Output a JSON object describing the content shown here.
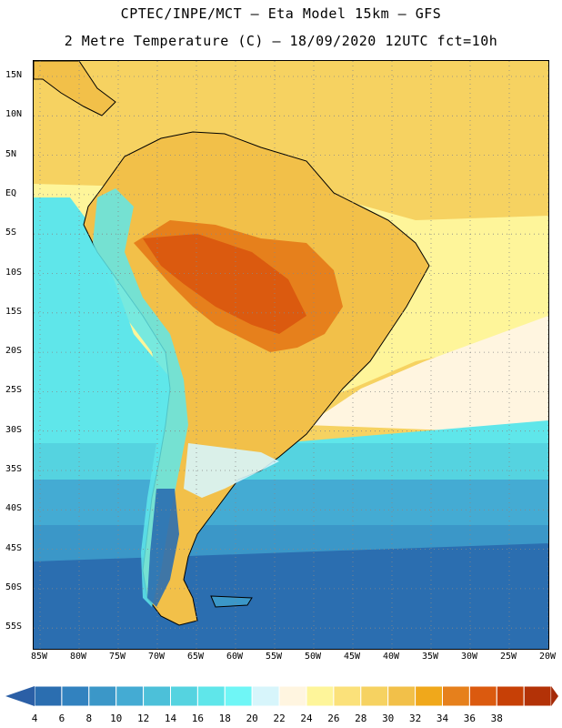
{
  "title": {
    "line1": "CPTEC/INPE/MCT –  Eta Model 15km – GFS",
    "line2": "2 Metre Temperature (C) – 18/09/2020 12UTC fct=10h"
  },
  "axes": {
    "lat_ticks": [
      "15N",
      "10N",
      "5N",
      "EQ",
      "5S",
      "10S",
      "15S",
      "20S",
      "25S",
      "30S",
      "35S",
      "40S",
      "45S",
      "50S",
      "55S"
    ],
    "lon_ticks": [
      "85W",
      "80W",
      "75W",
      "70W",
      "65W",
      "60W",
      "55W",
      "50W",
      "45W",
      "40W",
      "35W",
      "30W",
      "25W",
      "20W"
    ]
  },
  "colorbar": {
    "labels": [
      "4",
      "6",
      "8",
      "10",
      "12",
      "14",
      "16",
      "18",
      "20",
      "22",
      "24",
      "26",
      "28",
      "30",
      "32",
      "34",
      "36",
      "38"
    ],
    "colors": [
      "#2b6eb0",
      "#3282bf",
      "#3b97c8",
      "#44abd3",
      "#4cc0d9",
      "#55d3e0",
      "#5fe6ea",
      "#6ff6f6",
      "#d7f5fb",
      "#fff5e0",
      "#fef59a",
      "#fbe17a",
      "#f6d261",
      "#f2c049",
      "#f0a81b",
      "#e6801c",
      "#db5a0f",
      "#c74006",
      "#b33207"
    ]
  },
  "colors": {
    "ocean_south": "#2b6eb0",
    "ocean_mid": "#44abd3",
    "ocean_cyan": "#5fe6ea",
    "warm_hot": "#db5a0f",
    "land_warm": "#f2c049",
    "north_ocean": "#f6d261"
  }
}
